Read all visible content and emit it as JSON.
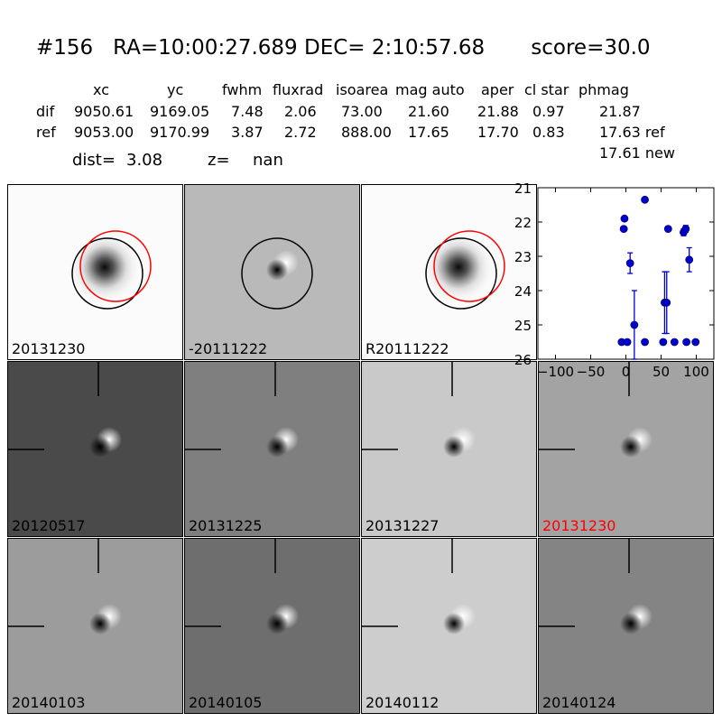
{
  "header": {
    "title": "#156   RA=10:00:27.689 DEC= 2:10:57.68       score=30.0",
    "columns": [
      "xc",
      "yc",
      "fwhm",
      "fluxrad",
      "isoarea",
      "mag auto",
      "aper",
      "cl star",
      "phmag"
    ],
    "rows": [
      {
        "label": "dif",
        "values": [
          "9050.61",
          "9169.05",
          "7.48",
          "2.06",
          "73.00",
          "21.60",
          "21.88",
          "0.97",
          "21.87"
        ]
      },
      {
        "label": "ref",
        "values": [
          "9053.00",
          "9170.99",
          "3.87",
          "2.72",
          "888.00",
          "17.65",
          "17.70",
          "0.83",
          "17.63 ref"
        ]
      }
    ],
    "phmag_new": "17.61 new",
    "dist_label": "dist=",
    "dist_value": "3.08",
    "z_label": "z=",
    "z_value": "nan"
  },
  "panels": [
    {
      "label": "20131230",
      "kind": "stamp_circles",
      "bg": "#fbfbfb",
      "label_color": "#000000"
    },
    {
      "label": "-20111222",
      "kind": "stamp_circles_dipole",
      "bg": "#b9b9b9",
      "label_color": "#000000"
    },
    {
      "label": "R20111222",
      "kind": "stamp_circles",
      "bg": "#fbfbfb",
      "label_color": "#000000"
    },
    {
      "label": "20120517",
      "kind": "dipole",
      "bg": "#4a4a4a",
      "label_color": "#000000"
    },
    {
      "label": "20131225",
      "kind": "dipole",
      "bg": "#7f7f7f",
      "label_color": "#000000"
    },
    {
      "label": "20131227",
      "kind": "dipole",
      "bg": "#c9c9c9",
      "label_color": "#000000"
    },
    {
      "label": "20131230",
      "kind": "dipole",
      "bg": "#a3a3a3",
      "label_color": "#ff0000"
    },
    {
      "label": "20140103",
      "kind": "dipole",
      "bg": "#9c9c9c",
      "label_color": "#000000"
    },
    {
      "label": "20140105",
      "kind": "dipole",
      "bg": "#6e6e6e",
      "label_color": "#000000"
    },
    {
      "label": "20140112",
      "kind": "dipole",
      "bg": "#cdcdcd",
      "label_color": "#000000"
    },
    {
      "label": "20140124",
      "kind": "dipole",
      "bg": "#848484",
      "label_color": "#000000"
    }
  ],
  "chart_data": {
    "type": "scatter",
    "title": "",
    "xlabel": "",
    "ylabel": "",
    "xlim": [
      -125,
      125
    ],
    "ylim": [
      26,
      21
    ],
    "y_inverted": true,
    "xticks": [
      -100,
      -50,
      0,
      50,
      100
    ],
    "yticks": [
      21,
      22,
      23,
      24,
      25,
      26
    ],
    "color": "#0000cc",
    "points": [
      {
        "x": -6,
        "y": 25.5,
        "err": 0
      },
      {
        "x": -3,
        "y": 22.2,
        "err": 0
      },
      {
        "x": -2,
        "y": 21.9,
        "err": 0
      },
      {
        "x": 2,
        "y": 25.5,
        "err": 0
      },
      {
        "x": 6,
        "y": 23.2,
        "err": 0.3
      },
      {
        "x": 12,
        "y": 25.0,
        "err": 1.0
      },
      {
        "x": 27,
        "y": 21.35,
        "err": 0
      },
      {
        "x": 27,
        "y": 25.5,
        "err": 0
      },
      {
        "x": 53,
        "y": 25.5,
        "err": 0
      },
      {
        "x": 55,
        "y": 24.35,
        "err": 0.9
      },
      {
        "x": 58,
        "y": 24.35,
        "err": 0.9
      },
      {
        "x": 60,
        "y": 22.2,
        "err": 0
      },
      {
        "x": 69,
        "y": 25.5,
        "err": 0
      },
      {
        "x": 82,
        "y": 22.3,
        "err": 0.1
      },
      {
        "x": 85,
        "y": 22.2,
        "err": 0.1
      },
      {
        "x": 86,
        "y": 25.5,
        "err": 0
      },
      {
        "x": 90,
        "y": 23.1,
        "err": 0.35
      },
      {
        "x": 99,
        "y": 25.5,
        "err": 0
      }
    ]
  }
}
